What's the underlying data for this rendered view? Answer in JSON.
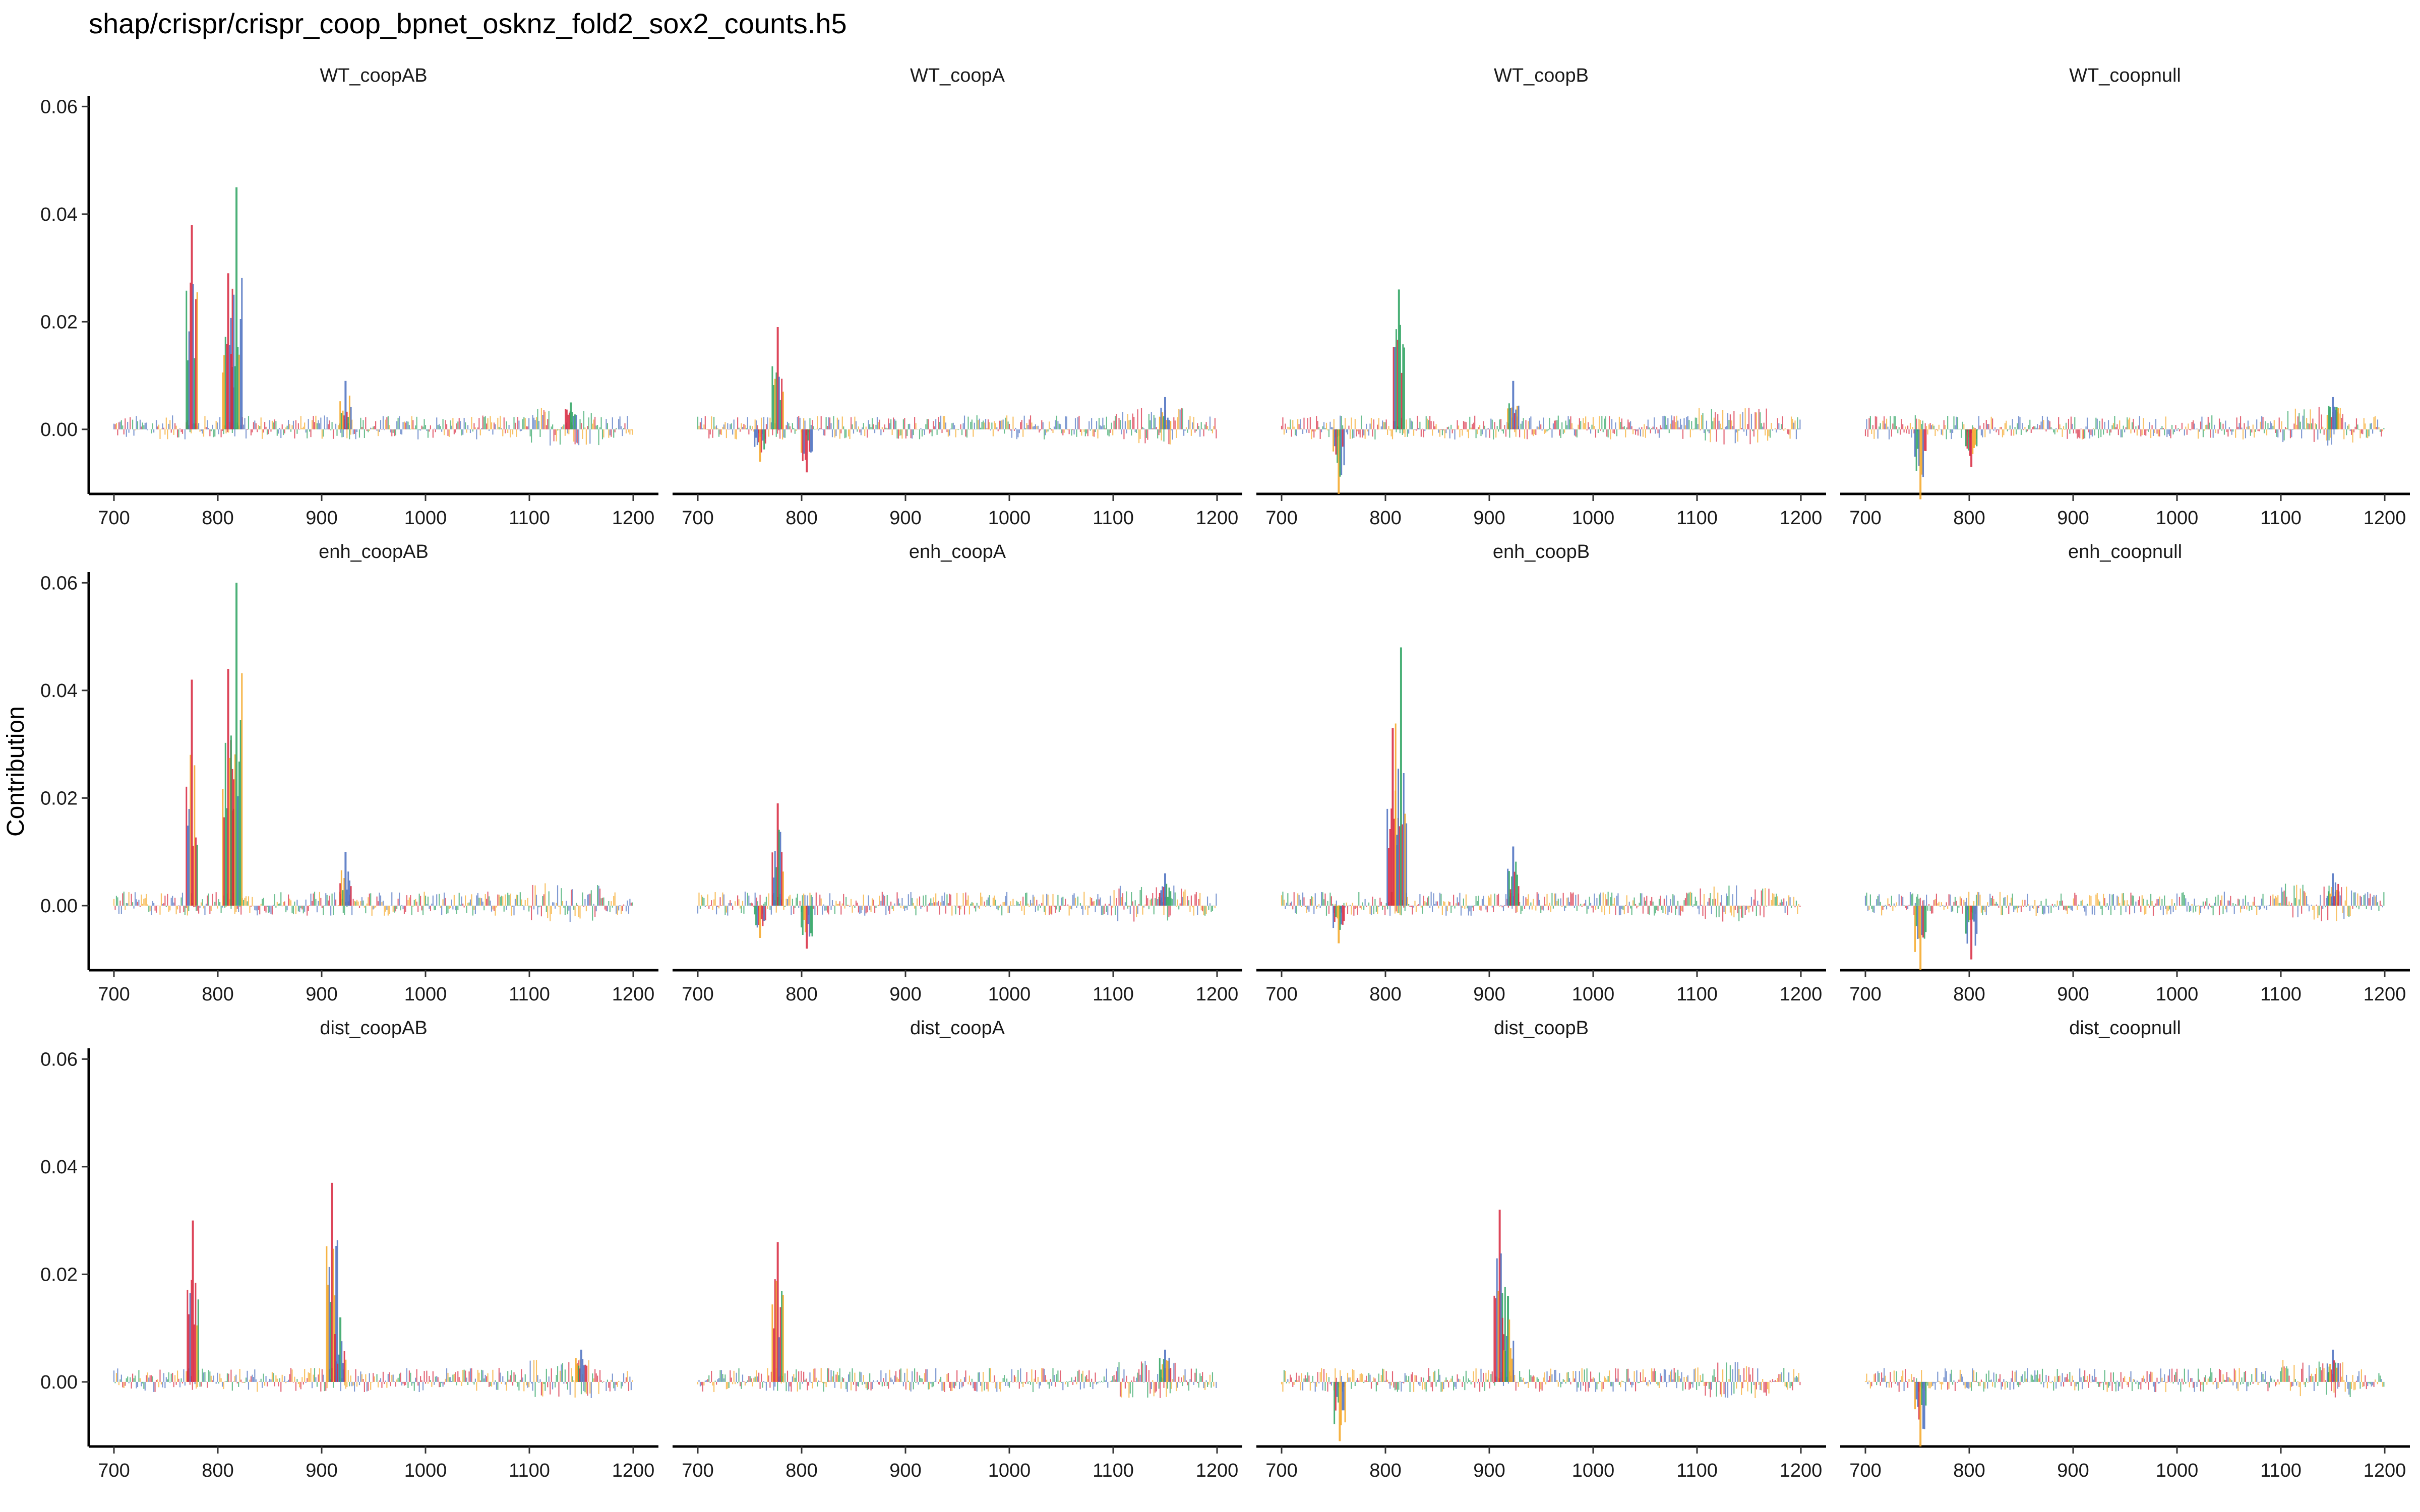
{
  "title": "shap/crispr/crispr_coop_bpnet_osknz_fold2_sox2_counts.h5",
  "chart_data": {
    "type": "bar",
    "description_kind": "faceted sequence contribution (logo) tracks",
    "facet_grid": {
      "rows": 3,
      "cols": 4
    },
    "ylabel": "Contribution",
    "xlim": [
      700,
      1200
    ],
    "ylim": [
      -0.012,
      0.062
    ],
    "x_ticks": [
      700,
      800,
      900,
      1000,
      1100,
      1200
    ],
    "y_ticks": [
      0.0,
      0.02,
      0.04,
      0.06
    ],
    "y_tick_labels": [
      "0.00",
      "0.02",
      "0.04",
      "0.06"
    ],
    "grid": false,
    "base_colors": {
      "A": "#2ca25f",
      "C": "#4a6fbf",
      "G": "#f5a623",
      "T": "#d7263d"
    },
    "panels": [
      {
        "name": "WT_coopAB",
        "peaks": [
          {
            "x": 775,
            "y": 0.038,
            "base": "T"
          },
          {
            "x": 810,
            "y": 0.029,
            "base": "T"
          },
          {
            "x": 818,
            "y": 0.045,
            "base": "A"
          },
          {
            "x": 923,
            "y": 0.009,
            "base": "C"
          },
          {
            "x": 1140,
            "y": 0.005,
            "base": "A"
          }
        ],
        "troughs": []
      },
      {
        "name": "WT_coopA",
        "peaks": [
          {
            "x": 777,
            "y": 0.019,
            "base": "T"
          },
          {
            "x": 1150,
            "y": 0.006,
            "base": "C"
          }
        ],
        "troughs": [
          {
            "x": 760,
            "y": -0.006,
            "base": "G"
          },
          {
            "x": 805,
            "y": -0.008,
            "base": "T"
          }
        ]
      },
      {
        "name": "WT_coopB",
        "peaks": [
          {
            "x": 813,
            "y": 0.026,
            "base": "A"
          },
          {
            "x": 923,
            "y": 0.009,
            "base": "C"
          }
        ],
        "troughs": [
          {
            "x": 755,
            "y": -0.012,
            "base": "G"
          }
        ]
      },
      {
        "name": "WT_coopnull",
        "peaks": [
          {
            "x": 1150,
            "y": 0.006,
            "base": "C"
          }
        ],
        "troughs": [
          {
            "x": 753,
            "y": -0.013,
            "base": "G"
          },
          {
            "x": 802,
            "y": -0.007,
            "base": "T"
          }
        ]
      },
      {
        "name": "enh_coopAB",
        "peaks": [
          {
            "x": 775,
            "y": 0.042,
            "base": "T"
          },
          {
            "x": 810,
            "y": 0.044,
            "base": "T"
          },
          {
            "x": 818,
            "y": 0.06,
            "base": "A"
          },
          {
            "x": 923,
            "y": 0.01,
            "base": "C"
          }
        ],
        "troughs": []
      },
      {
        "name": "enh_coopA",
        "peaks": [
          {
            "x": 777,
            "y": 0.019,
            "base": "T"
          },
          {
            "x": 1150,
            "y": 0.006,
            "base": "C"
          }
        ],
        "troughs": [
          {
            "x": 760,
            "y": -0.006,
            "base": "G"
          },
          {
            "x": 805,
            "y": -0.008,
            "base": "T"
          }
        ]
      },
      {
        "name": "enh_coopB",
        "peaks": [
          {
            "x": 807,
            "y": 0.033,
            "base": "T"
          },
          {
            "x": 815,
            "y": 0.048,
            "base": "A"
          },
          {
            "x": 923,
            "y": 0.011,
            "base": "C"
          }
        ],
        "troughs": [
          {
            "x": 755,
            "y": -0.007,
            "base": "G"
          }
        ]
      },
      {
        "name": "enh_coopnull",
        "peaks": [
          {
            "x": 1150,
            "y": 0.006,
            "base": "C"
          }
        ],
        "troughs": [
          {
            "x": 753,
            "y": -0.012,
            "base": "G"
          },
          {
            "x": 802,
            "y": -0.01,
            "base": "T"
          }
        ]
      },
      {
        "name": "dist_coopAB",
        "peaks": [
          {
            "x": 776,
            "y": 0.03,
            "base": "T"
          },
          {
            "x": 910,
            "y": 0.037,
            "base": "T"
          },
          {
            "x": 918,
            "y": 0.012,
            "base": "A"
          },
          {
            "x": 1150,
            "y": 0.006,
            "base": "C"
          }
        ],
        "troughs": []
      },
      {
        "name": "dist_coopA",
        "peaks": [
          {
            "x": 777,
            "y": 0.026,
            "base": "T"
          },
          {
            "x": 1150,
            "y": 0.006,
            "base": "C"
          }
        ],
        "troughs": []
      },
      {
        "name": "dist_coopB",
        "peaks": [
          {
            "x": 910,
            "y": 0.032,
            "base": "T"
          },
          {
            "x": 918,
            "y": 0.016,
            "base": "A"
          }
        ],
        "troughs": [
          {
            "x": 756,
            "y": -0.011,
            "base": "G"
          }
        ]
      },
      {
        "name": "dist_coopnull",
        "peaks": [
          {
            "x": 1150,
            "y": 0.006,
            "base": "C"
          }
        ],
        "troughs": [
          {
            "x": 753,
            "y": -0.012,
            "base": "G"
          }
        ]
      }
    ]
  }
}
